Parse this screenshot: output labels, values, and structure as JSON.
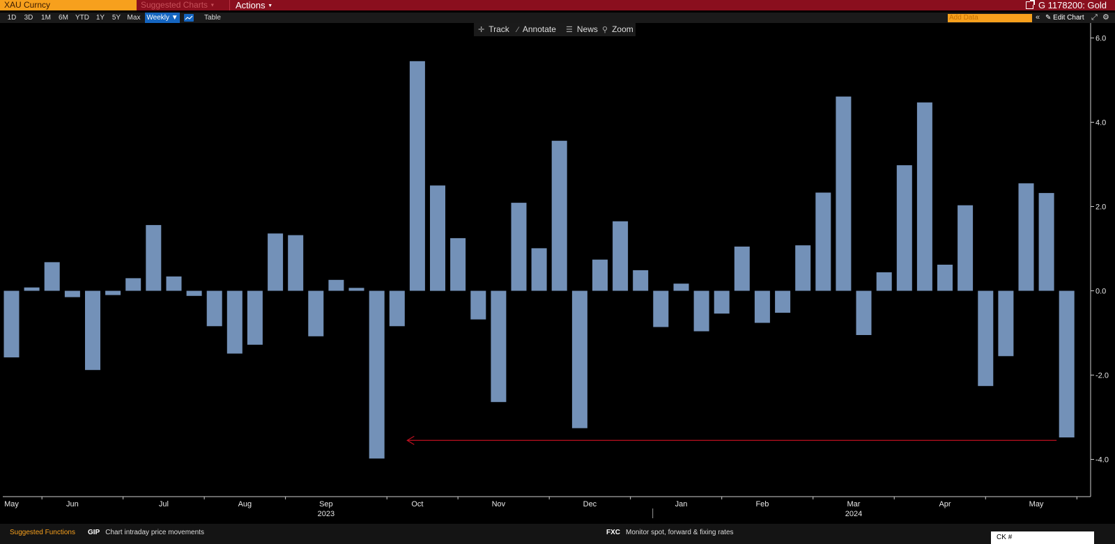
{
  "header": {
    "ticker": "XAU Curncy",
    "suggested_charts": "Suggested Charts",
    "actions": "Actions",
    "security": "G 1178200: Gold"
  },
  "toolbar": {
    "timeframes": [
      "1D",
      "3D",
      "1M",
      "6M",
      "YTD",
      "1Y",
      "5Y",
      "Max"
    ],
    "frequency": "Weekly ▼",
    "table": "Table",
    "add_data": "Add Data",
    "edit_chart": "Edit Chart"
  },
  "chart_menu": {
    "track": "Track",
    "annotate": "Annotate",
    "news": "News",
    "zoom": "Zoom"
  },
  "bottom": {
    "suggested_functions": "Suggested Functions",
    "f1_code": "GIP",
    "f1_desc": "Chart intraday price movements",
    "f2_code": "FXC",
    "f2_desc": "Monitor spot, forward & fixing rates",
    "command": "CK"
  },
  "colors": {
    "bar": "#7391b8",
    "header_bar": "#8a0f1e",
    "ticker_bg": "#f7a01d",
    "active_tab": "#1565c0",
    "arrow": "#c01020"
  },
  "chart_data": {
    "type": "bar",
    "frequency": "weekly",
    "values": [
      -1.58,
      0.08,
      0.68,
      -0.15,
      -1.88,
      -0.1,
      0.3,
      1.56,
      0.34,
      -0.12,
      -0.84,
      -1.49,
      -1.28,
      1.36,
      1.32,
      -1.08,
      0.26,
      0.07,
      -3.98,
      -0.84,
      5.45,
      2.5,
      1.25,
      -0.68,
      -2.64,
      2.09,
      1.01,
      3.56,
      -3.26,
      0.74,
      1.65,
      0.49,
      -0.86,
      0.17,
      -0.96,
      -0.54,
      1.05,
      -0.76,
      -0.52,
      1.08,
      2.33,
      4.61,
      -1.05,
      0.44,
      2.98,
      4.47,
      0.62,
      2.03,
      -2.26,
      -1.55,
      2.55,
      2.32,
      -3.48
    ],
    "y_ticks": [
      "6.0",
      "4.0",
      "2.0",
      "0.0",
      "-2.0",
      "-4.0"
    ],
    "ylim": [
      -4.8,
      6.3
    ],
    "month_labels": [
      "May",
      "Jun",
      "Jul",
      "Aug",
      "Sep",
      "Oct",
      "Nov",
      "Dec",
      "Jan",
      "Feb",
      "Mar",
      "Apr",
      "May"
    ],
    "month_label_positions": [
      0,
      3,
      7.5,
      11.5,
      15.5,
      20,
      24,
      28.5,
      33,
      37,
      41.5,
      46,
      50.5
    ],
    "year_labels": [
      "2023",
      "2024"
    ],
    "year_label_positions": [
      15.5,
      41.5
    ],
    "annotation": {
      "type": "arrow",
      "from_index": 51.5,
      "to_index": 19.5,
      "y": -3.55
    }
  }
}
